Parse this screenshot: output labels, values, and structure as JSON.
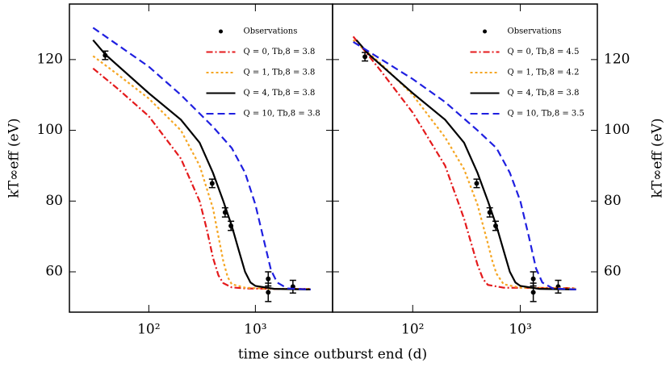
{
  "chart_data": [
    {
      "type": "line",
      "xlabel": "time since outburst end (d)",
      "ylabel": "kT∞eff (eV)",
      "ylabel_side": "left",
      "xscale": "log",
      "xlim": [
        18,
        5300
      ],
      "ylim": [
        48.6,
        135.7
      ],
      "xticks": [
        {
          "value": 100,
          "label": "10²"
        },
        {
          "value": 1000,
          "label": "10³"
        }
      ],
      "yticks": [
        60,
        80,
        100,
        120
      ],
      "series": [
        {
          "name": "Observations",
          "kind": "points",
          "color": "#000000",
          "x": [
            39,
            393,
            520,
            590,
            1320,
            1320,
            2250
          ],
          "values": [
            121.2,
            85,
            76.8,
            73,
            58,
            54.2,
            55.8
          ],
          "errors": [
            1.2,
            1.2,
            1.3,
            1.3,
            2,
            2.6,
            1.8
          ]
        },
        {
          "name": "Q = 0, Tb,8 = 3.8",
          "kind": "line",
          "color": "#e41a1c",
          "dash": "8,3,2,3",
          "x": [
            30,
            50,
            100,
            200,
            300,
            350,
            400,
            450,
            500,
            600,
            800,
            1500,
            3300
          ],
          "values": [
            117.5,
            112,
            104,
            92,
            80,
            72,
            64,
            59,
            56.8,
            55.6,
            55.3,
            55.2,
            55.2
          ]
        },
        {
          "name": "Q = 1, Tb,8 = 3.8",
          "kind": "line",
          "color": "#f5a623",
          "dash": "3,3",
          "x": [
            30,
            50,
            100,
            200,
            300,
            400,
            450,
            500,
            550,
            600,
            800,
            1500,
            3300
          ],
          "values": [
            121,
            116,
            109,
            100,
            90,
            78,
            70,
            63,
            58.5,
            56.5,
            55.5,
            55.2,
            55.2
          ]
        },
        {
          "name": "Q = 4, Tb,8 = 3.8",
          "kind": "line",
          "color": "#000000",
          "dash": "",
          "x": [
            30,
            39,
            100,
            200,
            300,
            400,
            500,
            600,
            700,
            800,
            900,
            1000,
            1500,
            3300
          ],
          "values": [
            125.5,
            121.5,
            110.5,
            103,
            96.5,
            88,
            80,
            73,
            66,
            60,
            57,
            56,
            55.2,
            55
          ]
        },
        {
          "name": "Q = 10, Tb,8 = 3.8",
          "kind": "line",
          "color": "#1f1fe0",
          "dash": "9,5",
          "x": [
            30,
            100,
            200,
            400,
            600,
            800,
            1000,
            1200,
            1400,
            1600,
            2000,
            3300
          ],
          "values": [
            129,
            118,
            110,
            101,
            95,
            88,
            79,
            69,
            60.5,
            57,
            55.3,
            55
          ]
        }
      ]
    },
    {
      "type": "line",
      "ylabel": "kT∞eff (eV)",
      "ylabel_side": "right",
      "xscale": "log",
      "xlim": [
        18,
        5200
      ],
      "ylim": [
        48.6,
        135.7
      ],
      "xticks": [
        {
          "value": 100,
          "label": "10²"
        },
        {
          "value": 1000,
          "label": "10³"
        }
      ],
      "yticks": [
        60,
        80,
        100,
        120
      ],
      "series": [
        {
          "name": "Observations",
          "kind": "points",
          "color": "#000000",
          "x": [
            36,
            393,
            520,
            590,
            1320,
            1320,
            2250
          ],
          "values": [
            120.8,
            85,
            76.8,
            73,
            58,
            54.2,
            55.8
          ],
          "errors": [
            1.2,
            1.2,
            1.3,
            1.3,
            2,
            2.6,
            1.8
          ]
        },
        {
          "name": "Q = 0, Tb,8 = 4.5",
          "kind": "line",
          "color": "#e41a1c",
          "dash": "8,3,2,3",
          "x": [
            28,
            50,
            100,
            200,
            300,
            350,
            400,
            450,
            500,
            700,
            3300
          ],
          "values": [
            126.5,
            117,
            105,
            90,
            75,
            68,
            62,
            58,
            56.3,
            55.5,
            55.4
          ]
        },
        {
          "name": "Q = 1, Tb,8 = 4.2",
          "kind": "line",
          "color": "#f5a623",
          "dash": "3,3",
          "x": [
            28,
            50,
            100,
            200,
            300,
            400,
            500,
            550,
            600,
            700,
            1000,
            3300
          ],
          "values": [
            125.5,
            119,
            110,
            98,
            89,
            79,
            68,
            63,
            59.5,
            56.5,
            55.5,
            55.3
          ]
        },
        {
          "name": "Q = 4, Tb,8 = 3.8",
          "kind": "line",
          "color": "#000000",
          "dash": "",
          "x": [
            30,
            39,
            100,
            200,
            300,
            400,
            500,
            600,
            700,
            800,
            900,
            1000,
            1500,
            3300
          ],
          "values": [
            125.5,
            121.5,
            110.5,
            103,
            96.5,
            88,
            80,
            73,
            66,
            60,
            57,
            56,
            55.2,
            55
          ]
        },
        {
          "name": "Q = 10, Tb,8 = 3.5",
          "kind": "line",
          "color": "#1f1fe0",
          "dash": "9,5",
          "x": [
            28,
            100,
            200,
            400,
            600,
            800,
            1000,
            1200,
            1400,
            1600,
            2000,
            3300
          ],
          "values": [
            125,
            114.5,
            108,
            100,
            95,
            88,
            80,
            70,
            61,
            57,
            55.3,
            55
          ]
        }
      ]
    }
  ]
}
